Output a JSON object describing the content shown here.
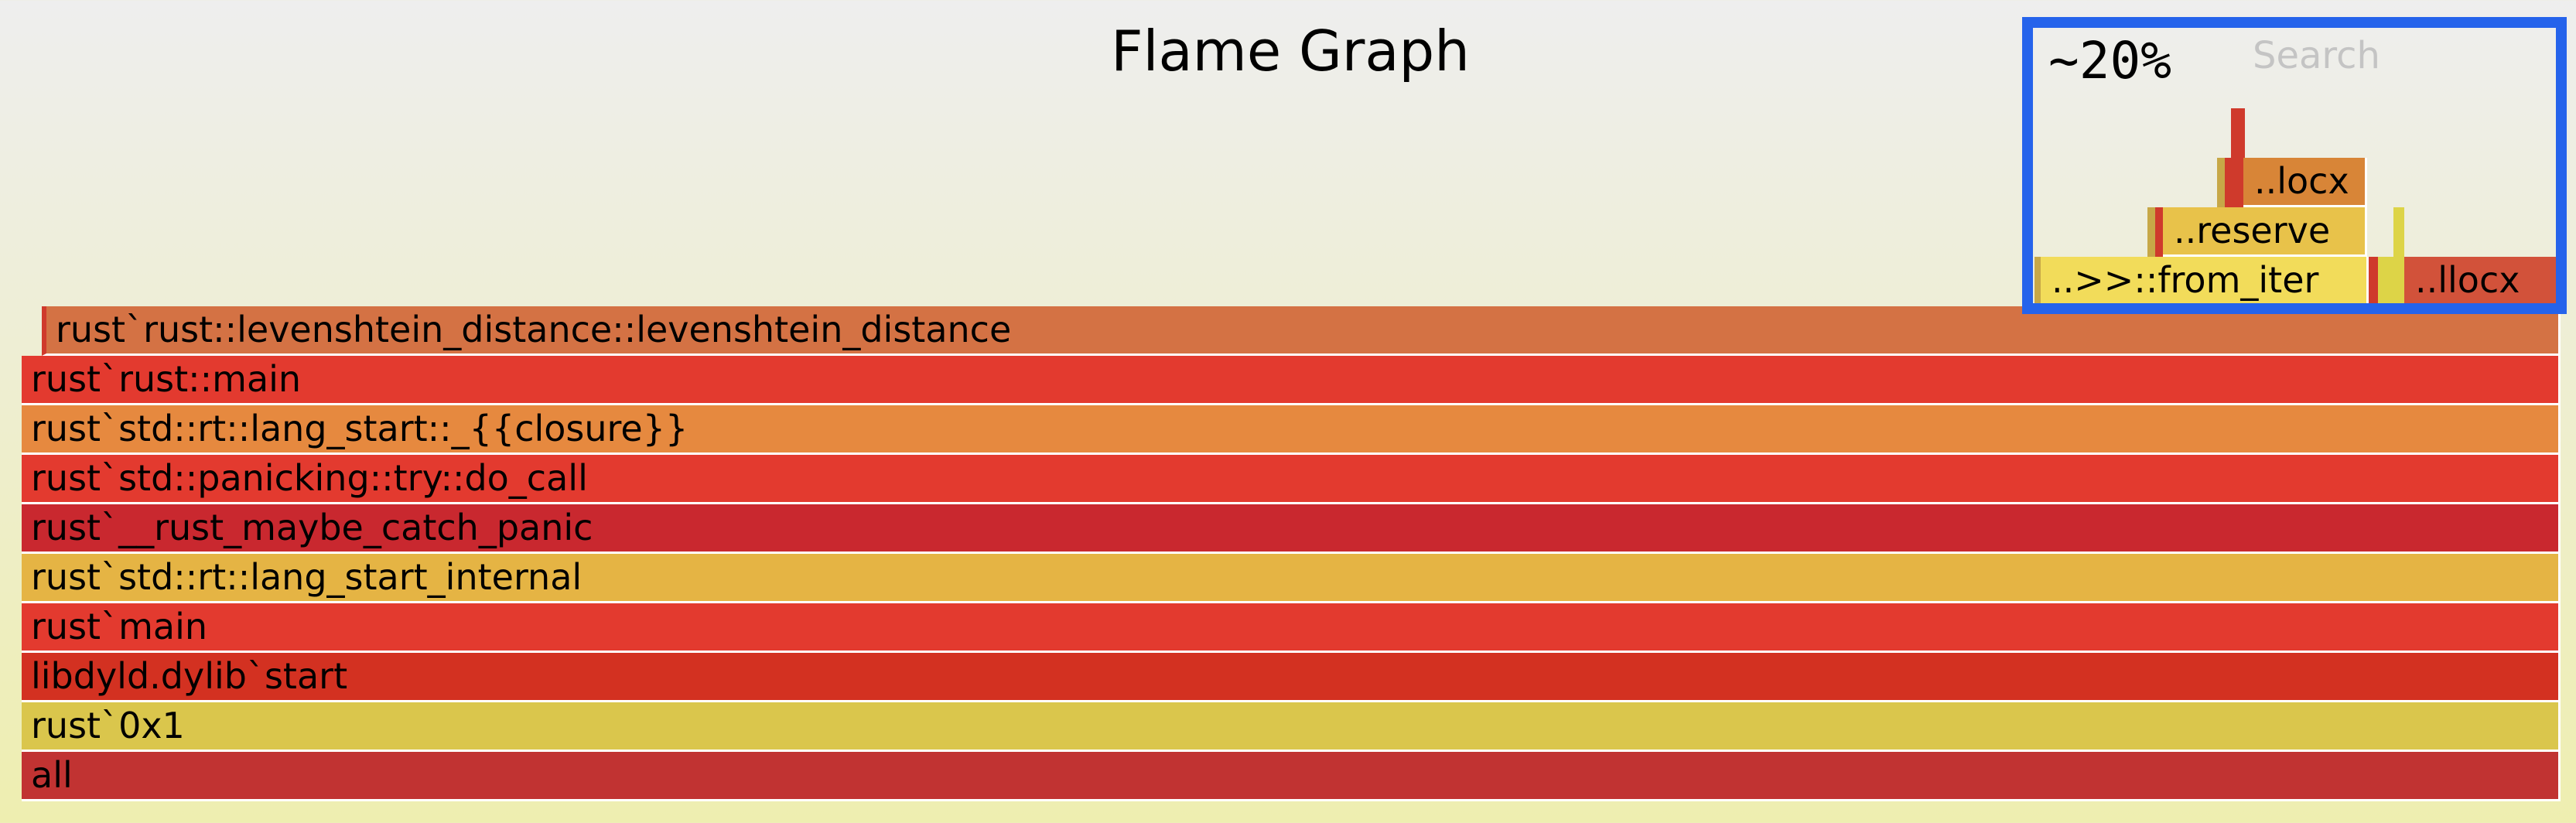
{
  "header": {
    "title": "Flame Graph",
    "search_label": "Search",
    "zoom_percent": "~20%"
  },
  "stack": [
    {
      "label": "rust`rust::levenshtein_distance::levenshtein_distance",
      "color": "#d47244"
    },
    {
      "label": "rust`rust::main",
      "color": "#e33a2f"
    },
    {
      "label": "rust`std::rt::lang_start::_{{closure}}",
      "color": "#e6893f"
    },
    {
      "label": "rust`std::panicking::try::do_call",
      "color": "#e33a2f"
    },
    {
      "label": "rust`__rust_maybe_catch_panic",
      "color": "#c9282f"
    },
    {
      "label": "rust`std::rt::lang_start_internal",
      "color": "#e5b444"
    },
    {
      "label": "rust`main",
      "color": "#e33a2f"
    },
    {
      "label": "libdyld.dylib`start",
      "color": "#d33121"
    },
    {
      "label": "rust`0x1",
      "color": "#dac64c"
    },
    {
      "label": "all",
      "color": "#c13332"
    }
  ],
  "minimap": {
    "from_iter": "..>>::from_iter",
    "llocx": "..llocx",
    "reserve": "..reserve",
    "locx": "..locx"
  },
  "colors": {
    "accent_box": "#2563eb",
    "red": "#cf3a2c",
    "orange": "#d88537",
    "yellow": "#f2dc5a",
    "yellow_alt": "#e8c24a",
    "gold": "#c7a847",
    "lime": "#ddd447"
  }
}
